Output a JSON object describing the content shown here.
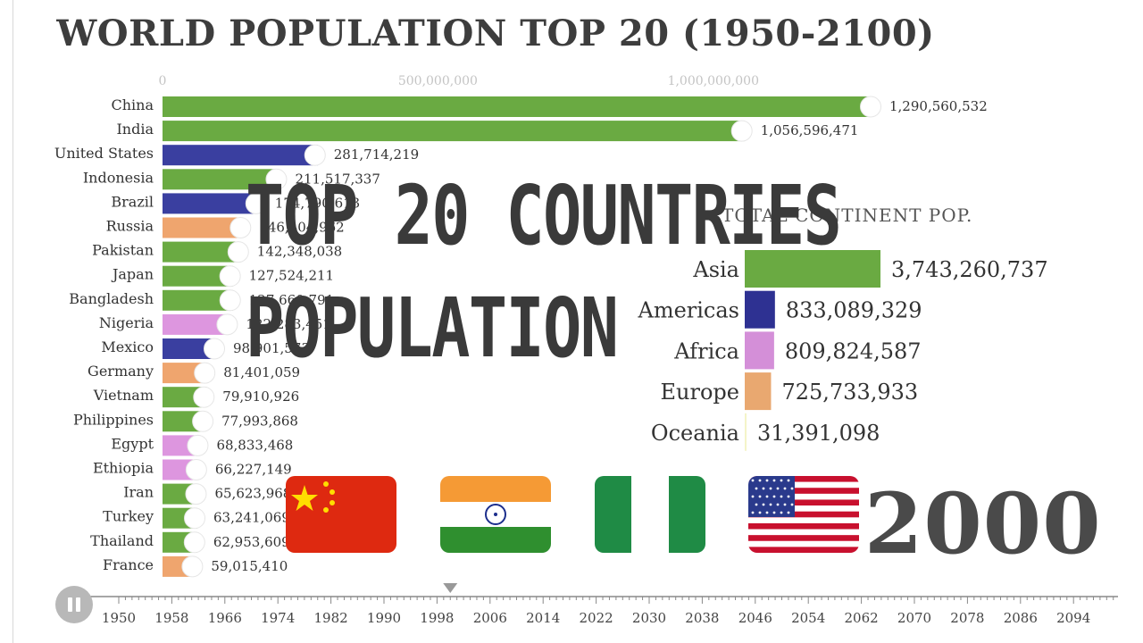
{
  "title": "WORLD POPULATION TOP 20 (1950-2100)",
  "overlay": {
    "line1": "TOP 20 COUNTRIES",
    "line2": "POPULATION"
  },
  "year": "2000",
  "chart_data": [
    {
      "type": "bar",
      "orientation": "horizontal",
      "title": "WORLD POPULATION TOP 20 (1950-2100)",
      "x_ticks": [
        "0",
        "500,000,000",
        "1,000,000,000"
      ],
      "x_tick_values": [
        0,
        500000000,
        1000000000
      ],
      "categories": [
        "China",
        "India",
        "United States",
        "Indonesia",
        "Brazil",
        "Russia",
        "Pakistan",
        "Japan",
        "Bangladesh",
        "Nigeria",
        "Mexico",
        "Germany",
        "Vietnam",
        "Philippines",
        "Egypt",
        "Ethiopia",
        "Iran",
        "Turkey",
        "Thailand",
        "France"
      ],
      "values": [
        1290560532,
        1056596471,
        281714219,
        211517337,
        174790613,
        146404962,
        142348038,
        127524211,
        127660791,
        122283451,
        98901573,
        81401059,
        79910926,
        77993868,
        68833468,
        66227149,
        65623968,
        63241069,
        62953609,
        59015410
      ],
      "labels": [
        "1,290,560,532",
        "1,056,596,471",
        "281,714,219",
        "211,517,337",
        "174,790,613",
        "146,404,962",
        "142,348,038",
        "127,524,211",
        "127,660,791",
        "122,283,451",
        "98,901,573",
        "81,401,059",
        "79,910,926",
        "77,993,868",
        "68,833,468",
        "66,227,149",
        "65,623,968",
        "63,241,069",
        "62,953,609",
        "59,015,410"
      ],
      "continent": [
        "asia",
        "asia",
        "americas",
        "asia",
        "americas",
        "europe",
        "asia",
        "asia",
        "asia",
        "africa",
        "americas",
        "europe",
        "asia",
        "asia",
        "africa",
        "africa",
        "asia",
        "asia",
        "asia",
        "europe"
      ],
      "colors": {
        "asia": "#6aaa42",
        "americas": "#3a3fa0",
        "europe": "#efa56e",
        "africa": "#dd96df"
      }
    },
    {
      "type": "bar",
      "orientation": "horizontal",
      "title": "TOTAL CONTINENT POP.",
      "categories": [
        "Asia",
        "Americas",
        "Africa",
        "Europe",
        "Oceania"
      ],
      "values": [
        3743260737,
        833089329,
        809824587,
        725733933,
        31391098
      ],
      "labels": [
        "3,743,260,737",
        "833,089,329",
        "809,824,587",
        "725,733,933",
        "31,391,098"
      ],
      "colors": [
        "#6aaa42",
        "#2e3192",
        "#d48fd8",
        "#e9a870",
        "#f4f4c8"
      ]
    }
  ],
  "flags": [
    "china-flag",
    "india-flag",
    "nigeria-flag",
    "usa-flag"
  ],
  "timeline": {
    "ticks": [
      "1950",
      "1958",
      "1966",
      "1974",
      "1982",
      "1990",
      "1998",
      "2006",
      "2014",
      "2022",
      "2030",
      "2038",
      "2046",
      "2054",
      "2062",
      "2070",
      "2078",
      "2086",
      "2094"
    ],
    "current": 2000
  }
}
